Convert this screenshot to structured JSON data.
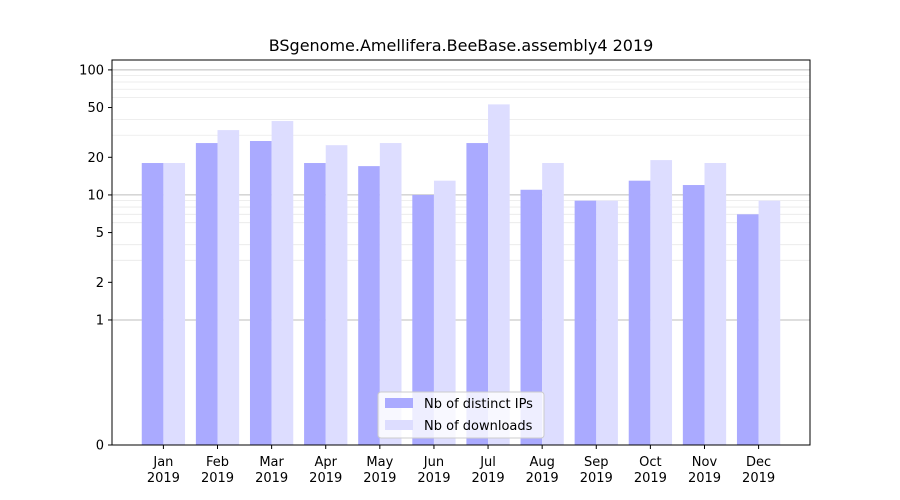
{
  "chart_data": {
    "type": "bar",
    "title": "BSgenome.Amellifera.BeeBase.assembly4 2019",
    "xlabel": "",
    "ylabel": "",
    "yscale": "symlog",
    "yticks": [
      0,
      1,
      2,
      5,
      10,
      20,
      50,
      100
    ],
    "ytick_labels": [
      "0",
      "1",
      "2",
      "5",
      "10",
      "20",
      "50",
      "100"
    ],
    "ylim": [
      0,
      120
    ],
    "categories": [
      {
        "month": "Jan",
        "year": "2019"
      },
      {
        "month": "Feb",
        "year": "2019"
      },
      {
        "month": "Mar",
        "year": "2019"
      },
      {
        "month": "Apr",
        "year": "2019"
      },
      {
        "month": "May",
        "year": "2019"
      },
      {
        "month": "Jun",
        "year": "2019"
      },
      {
        "month": "Jul",
        "year": "2019"
      },
      {
        "month": "Aug",
        "year": "2019"
      },
      {
        "month": "Sep",
        "year": "2019"
      },
      {
        "month": "Oct",
        "year": "2019"
      },
      {
        "month": "Nov",
        "year": "2019"
      },
      {
        "month": "Dec",
        "year": "2019"
      }
    ],
    "series": [
      {
        "name": "Nb of distinct IPs",
        "color": "#aaaaff",
        "values": [
          18,
          26,
          27,
          18,
          17,
          10,
          26,
          11,
          9,
          13,
          12,
          7
        ]
      },
      {
        "name": "Nb of downloads",
        "color": "#ddddff",
        "values": [
          18,
          33,
          39,
          25,
          26,
          13,
          53,
          18,
          9,
          19,
          18,
          9
        ]
      }
    ],
    "legend": "bottom-center",
    "grid": true
  }
}
